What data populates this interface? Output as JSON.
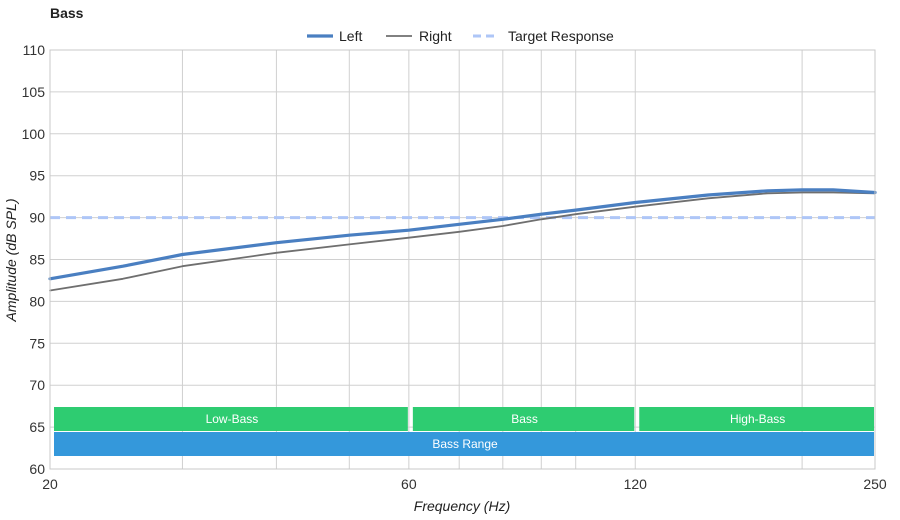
{
  "chart_data": {
    "type": "line",
    "title": "Bass",
    "xlabel": "Frequency (Hz)",
    "ylabel": "Amplitude (dB SPL)",
    "x_scale": "log",
    "xlim": [
      20,
      250
    ],
    "ylim": [
      60,
      110
    ],
    "x_ticks": [
      20,
      60,
      120,
      250
    ],
    "y_ticks": [
      60,
      65,
      70,
      75,
      80,
      85,
      90,
      95,
      100,
      105,
      110
    ],
    "x_gridlines": [
      20,
      30,
      40,
      50,
      60,
      70,
      80,
      90,
      100,
      120,
      200,
      250
    ],
    "grid": true,
    "legend_position": "top-center",
    "series": [
      {
        "name": "Left",
        "color": "#4a7fc1",
        "style": "solid-thick",
        "x": [
          20,
          25,
          30,
          40,
          50,
          60,
          70,
          80,
          90,
          100,
          120,
          150,
          180,
          200,
          220,
          250
        ],
        "y": [
          82.7,
          84.2,
          85.6,
          87.0,
          87.9,
          88.5,
          89.2,
          89.8,
          90.4,
          90.9,
          91.8,
          92.7,
          93.2,
          93.3,
          93.3,
          93.0
        ]
      },
      {
        "name": "Right",
        "color": "#6f6f6f",
        "style": "solid-thin",
        "x": [
          20,
          25,
          30,
          40,
          50,
          60,
          70,
          80,
          90,
          100,
          120,
          150,
          180,
          200,
          220,
          250
        ],
        "y": [
          81.3,
          82.7,
          84.2,
          85.8,
          86.8,
          87.6,
          88.3,
          89.0,
          89.8,
          90.4,
          91.3,
          92.3,
          92.9,
          93.0,
          93.0,
          92.9
        ]
      },
      {
        "name": "Target Response",
        "color": "#aec6f7",
        "style": "dashed",
        "x": [
          20,
          250
        ],
        "y": [
          90,
          90
        ]
      }
    ],
    "bands": [
      {
        "label": "Low-Bass",
        "from": 20,
        "to": 60,
        "color": "#2ecc71",
        "row": 0
      },
      {
        "label": "Bass",
        "from": 60,
        "to": 120,
        "color": "#2ecc71",
        "row": 0
      },
      {
        "label": "High-Bass",
        "from": 120,
        "to": 250,
        "color": "#2ecc71",
        "row": 0
      },
      {
        "label": "Bass Range",
        "from": 20,
        "to": 250,
        "color": "#3498db",
        "row": 1
      }
    ]
  }
}
